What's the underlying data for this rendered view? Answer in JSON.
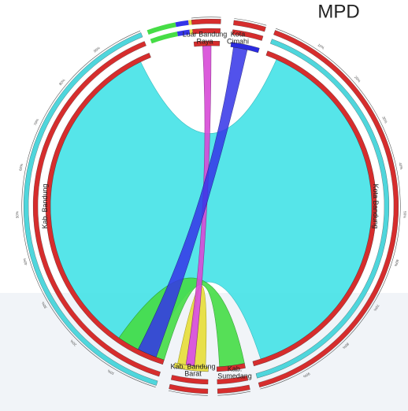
{
  "title": "MPD",
  "nodes": [
    {
      "label": [
        "Kota Bandung"
      ],
      "ticks": [
        "10%",
        "20%",
        "30%",
        "40%",
        "50%",
        "60%",
        "70%",
        "80%",
        "90%"
      ]
    },
    {
      "label": [
        "Kab.",
        "Sumedang"
      ],
      "ticks": []
    },
    {
      "label": [
        "Kab. Bandung",
        "Barat"
      ],
      "ticks": []
    },
    {
      "label": [
        "Kab. Bandung"
      ],
      "ticks": [
        "10%",
        "20%",
        "30%",
        "40%",
        "50%",
        "60%",
        "70%",
        "80%",
        "90%"
      ]
    },
    {
      "label": [
        "Luar Bandung",
        "Raya"
      ],
      "ticks": []
    },
    {
      "label": [
        "Kota",
        "Cimahi"
      ],
      "ticks": []
    }
  ]
}
